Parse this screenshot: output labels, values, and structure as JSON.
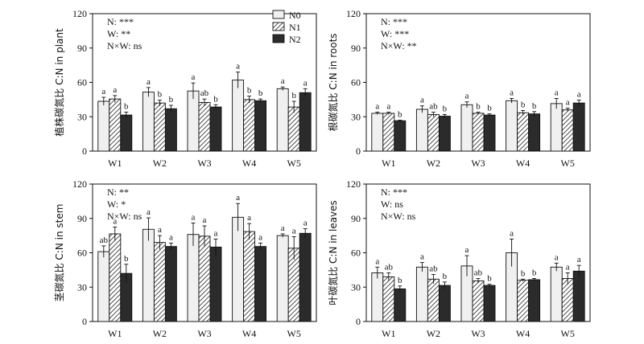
{
  "legend": [
    {
      "name": "N0",
      "fill": "#f0f0f0"
    },
    {
      "name": "N1",
      "fill": "hatch"
    },
    {
      "name": "N2",
      "fill": "#2b2b2b"
    }
  ],
  "chart_data": [
    {
      "type": "bar",
      "ylabel": "植株碳氮比 C:N in plant",
      "ylim": [
        0,
        120
      ],
      "yticks": [
        0,
        30,
        60,
        90,
        120
      ],
      "categories": [
        "W1",
        "W2",
        "W3",
        "W4",
        "W5"
      ],
      "stats": [
        "N: ***",
        "W: **",
        "N×W: ns"
      ],
      "series": [
        {
          "name": "N0",
          "values": [
            43.5,
            51.5,
            52.5,
            62.0,
            54.5
          ],
          "err": [
            3.5,
            4.0,
            7.0,
            7.0,
            1.5
          ],
          "letters": [
            "a",
            "a",
            "a",
            "a",
            "a"
          ]
        },
        {
          "name": "N1",
          "values": [
            45.5,
            42.0,
            42.5,
            45.0,
            38.5
          ],
          "err": [
            3.0,
            2.5,
            3.0,
            3.0,
            5.0
          ],
          "letters": [
            "a",
            "b",
            "ab",
            "b",
            "b"
          ]
        },
        {
          "name": "N2",
          "values": [
            31.5,
            37.0,
            38.5,
            44.0,
            51.0
          ],
          "err": [
            2.5,
            3.0,
            2.0,
            1.5,
            3.5
          ],
          "letters": [
            "b",
            "b",
            "b",
            "b",
            "a"
          ]
        }
      ]
    },
    {
      "type": "bar",
      "ylabel": "根碳氮比 C:N in roots",
      "ylim": [
        0,
        120
      ],
      "yticks": [
        0,
        30,
        60,
        90,
        120
      ],
      "categories": [
        "W1",
        "W2",
        "W3",
        "W4",
        "W5"
      ],
      "stats": [
        "N: ***",
        "W: ***",
        "N×W: **"
      ],
      "series": [
        {
          "name": "N0",
          "values": [
            33.0,
            36.5,
            40.5,
            44.0,
            41.5
          ],
          "err": [
            1.0,
            3.0,
            2.5,
            2.0,
            4.5
          ],
          "letters": [
            "a",
            "a",
            "a",
            "a",
            "a"
          ]
        },
        {
          "name": "N1",
          "values": [
            33.0,
            32.0,
            33.0,
            33.5,
            36.0
          ],
          "err": [
            1.0,
            2.0,
            1.0,
            2.0,
            1.5
          ],
          "letters": [
            "a",
            "ab",
            "b",
            "b",
            "a"
          ]
        },
        {
          "name": "N2",
          "values": [
            26.5,
            30.5,
            31.5,
            32.5,
            42.0
          ],
          "err": [
            0.5,
            1.5,
            1.0,
            2.0,
            2.5
          ],
          "letters": [
            "b",
            "b",
            "b",
            "b",
            "a"
          ]
        }
      ]
    },
    {
      "type": "bar",
      "ylabel": "茎碳氮比 C:N in stem",
      "ylim": [
        0,
        120
      ],
      "yticks": [
        0,
        30,
        60,
        90,
        120
      ],
      "categories": [
        "W1",
        "W2",
        "W3",
        "W4",
        "W5"
      ],
      "stats": [
        "N: **",
        "W: *",
        "N×W: ns"
      ],
      "series": [
        {
          "name": "N0",
          "values": [
            61.0,
            80.5,
            76.0,
            91.0,
            75.0
          ],
          "err": [
            5.0,
            10.0,
            10.0,
            12.0,
            1.5
          ],
          "letters": [
            "ab",
            "a",
            "a",
            "a",
            "a"
          ]
        },
        {
          "name": "N1",
          "values": [
            76.5,
            69.0,
            74.5,
            78.5,
            64.0
          ],
          "err": [
            6.0,
            6.0,
            9.0,
            7.0,
            10.0
          ],
          "letters": [
            "a",
            "a",
            "a",
            "a",
            "a"
          ]
        },
        {
          "name": "N2",
          "values": [
            42.0,
            65.5,
            65.0,
            65.5,
            77.0
          ],
          "err": [
            8.0,
            3.0,
            7.0,
            3.0,
            4.0
          ],
          "letters": [
            "b",
            "a",
            "a",
            "a",
            "a"
          ]
        }
      ]
    },
    {
      "type": "bar",
      "ylabel": "叶碳氮比 C:N in leaves",
      "ylim": [
        0,
        120
      ],
      "yticks": [
        0,
        30,
        60,
        90,
        120
      ],
      "categories": [
        "W1",
        "W2",
        "W3",
        "W4",
        "W5"
      ],
      "stats": [
        "N: ***",
        "W: ns",
        "N×W: ns"
      ],
      "series": [
        {
          "name": "N0",
          "values": [
            42.5,
            47.5,
            48.5,
            60.0,
            47.5
          ],
          "err": [
            5.0,
            4.0,
            9.0,
            12.0,
            3.5
          ],
          "letters": [
            "a",
            "a",
            "a",
            "a",
            "a"
          ]
        },
        {
          "name": "N1",
          "values": [
            39.0,
            37.0,
            35.5,
            36.0,
            37.5
          ],
          "err": [
            3.5,
            4.0,
            2.0,
            1.0,
            5.0
          ],
          "letters": [
            "ab",
            "ab",
            "ab",
            "b",
            "a"
          ]
        },
        {
          "name": "N2",
          "values": [
            28.5,
            31.5,
            31.5,
            36.5,
            44.0
          ],
          "err": [
            2.5,
            3.0,
            1.0,
            1.0,
            5.0
          ],
          "letters": [
            "b",
            "b",
            "b",
            "b",
            "a"
          ]
        }
      ]
    }
  ]
}
